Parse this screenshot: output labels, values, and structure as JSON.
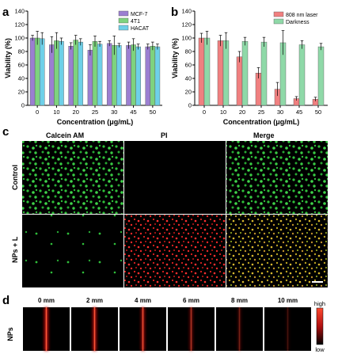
{
  "panels": {
    "a": "a",
    "b": "b",
    "c": "c",
    "d": "d"
  },
  "chart_data": [
    {
      "panel": "a",
      "type": "bar",
      "xlabel": "Concentration (μg/mL)",
      "ylabel": "Viability (%)",
      "ylim": [
        0,
        140
      ],
      "yticks": [
        "0",
        "20",
        "40",
        "60",
        "80",
        "100",
        "120",
        "140"
      ],
      "categories": [
        "0",
        "10",
        "20",
        "25",
        "30",
        "45",
        "50"
      ],
      "legend_position": "top-right",
      "series": [
        {
          "name": "MCF-7",
          "color": "#9b7fd1",
          "values": [
            100,
            90,
            88,
            82,
            92,
            89,
            87
          ],
          "errors": [
            4,
            12,
            5,
            8,
            4,
            5,
            4
          ]
        },
        {
          "name": "4T1",
          "color": "#7ed37e",
          "values": [
            100,
            96,
            97,
            95,
            89,
            90,
            88
          ],
          "errors": [
            10,
            12,
            7,
            8,
            14,
            9,
            6
          ]
        },
        {
          "name": "HACAT",
          "color": "#6ed0e8",
          "values": [
            99,
            95,
            94,
            91,
            89,
            87,
            87
          ],
          "errors": [
            9,
            5,
            5,
            4,
            3,
            4,
            4
          ]
        }
      ]
    },
    {
      "panel": "b",
      "type": "bar",
      "xlabel": "Concentration (μg/mL)",
      "ylabel": "Viability (%)",
      "ylim": [
        0,
        140
      ],
      "yticks": [
        "0",
        "20",
        "40",
        "60",
        "80",
        "100",
        "120",
        "140"
      ],
      "categories": [
        "0",
        "10",
        "20",
        "25",
        "30",
        "45",
        "50"
      ],
      "legend_position": "top-right",
      "series": [
        {
          "name": "808 nm laser",
          "color": "#f08080",
          "values": [
            100,
            96,
            72,
            48,
            24,
            10,
            9
          ],
          "errors": [
            7,
            8,
            8,
            8,
            10,
            3,
            3
          ]
        },
        {
          "name": "Darkness",
          "color": "#8fd9a8",
          "values": [
            100,
            96,
            95,
            94,
            93,
            90,
            87
          ],
          "errors": [
            10,
            12,
            6,
            7,
            18,
            6,
            5
          ]
        }
      ]
    }
  ],
  "panel_c": {
    "col_labels": [
      "Calcein AM",
      "PI",
      "Merge"
    ],
    "row_labels": [
      "Control",
      "NPs + L"
    ]
  },
  "panel_d": {
    "depths": [
      "0 mm",
      "2 mm",
      "4 mm",
      "6 mm",
      "8 mm",
      "10 mm"
    ],
    "intensity": [
      1.0,
      0.95,
      0.85,
      0.55,
      0.35,
      0.2
    ],
    "row_label": "NPs",
    "scale_high": "high",
    "scale_low": "low"
  }
}
